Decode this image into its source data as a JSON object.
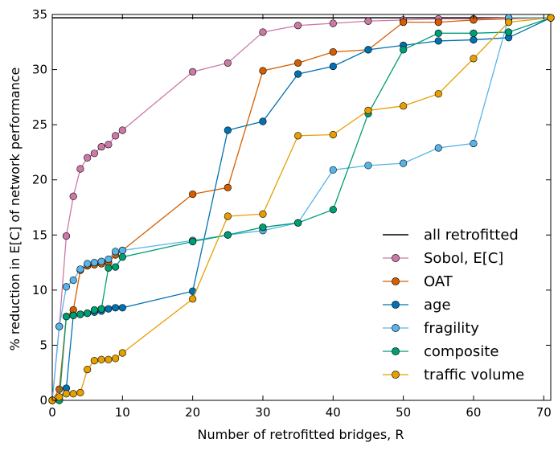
{
  "chart_data": {
    "type": "line",
    "title": "",
    "xlabel": "Number of retrofitted bridges, R",
    "ylabel": "% reduction in E[C] of network performance",
    "xlim": [
      0,
      71
    ],
    "ylim": [
      0,
      35
    ],
    "xticks": [
      0,
      10,
      20,
      30,
      40,
      50,
      60,
      70
    ],
    "yticks": [
      0,
      5,
      10,
      15,
      20,
      25,
      30,
      35
    ],
    "grid": false,
    "legend_position": "lower-right",
    "reference_line": {
      "name": "all retrofitted",
      "y": 34.7,
      "color": "#000000"
    },
    "series": [
      {
        "name": "Sobol, E[C]",
        "color": "#cc79a7",
        "x": [
          0,
          1,
          2,
          3,
          4,
          5,
          6,
          7,
          8,
          9,
          10,
          20,
          25,
          30,
          35,
          40,
          45,
          50,
          55,
          60,
          65,
          71
        ],
        "y": [
          0,
          6.7,
          14.9,
          18.5,
          21.0,
          22.0,
          22.4,
          23.0,
          23.2,
          24.0,
          24.5,
          29.8,
          30.6,
          33.4,
          34.0,
          34.2,
          34.4,
          34.5,
          34.6,
          34.6,
          34.7,
          34.7
        ]
      },
      {
        "name": "OAT",
        "color": "#d55e00",
        "x": [
          0,
          1,
          2,
          3,
          4,
          5,
          6,
          7,
          8,
          9,
          10,
          20,
          25,
          30,
          35,
          40,
          45,
          50,
          55,
          60,
          65,
          71
        ],
        "y": [
          0,
          1.0,
          7.6,
          8.2,
          11.8,
          12.2,
          12.3,
          12.4,
          12.5,
          13.2,
          13.6,
          18.7,
          19.3,
          29.9,
          30.6,
          31.6,
          31.8,
          34.3,
          34.3,
          34.5,
          34.6,
          34.7
        ]
      },
      {
        "name": "age",
        "color": "#0072b2",
        "x": [
          0,
          1,
          2,
          3,
          4,
          5,
          6,
          7,
          8,
          9,
          10,
          20,
          25,
          30,
          35,
          40,
          45,
          50,
          55,
          60,
          65,
          71
        ],
        "y": [
          0,
          0.1,
          1.1,
          7.7,
          7.8,
          7.9,
          8.0,
          8.1,
          8.3,
          8.4,
          8.4,
          9.9,
          24.5,
          25.3,
          29.6,
          30.3,
          31.8,
          32.2,
          32.6,
          32.7,
          32.9,
          34.7
        ]
      },
      {
        "name": "fragility",
        "color": "#56b4e9",
        "x": [
          0,
          1,
          2,
          3,
          4,
          5,
          6,
          7,
          8,
          9,
          10,
          20,
          25,
          30,
          35,
          40,
          45,
          50,
          55,
          60,
          65,
          71
        ],
        "y": [
          0,
          6.7,
          10.3,
          10.9,
          11.9,
          12.4,
          12.5,
          12.6,
          12.8,
          13.5,
          13.6,
          14.5,
          15.0,
          15.4,
          16.1,
          20.9,
          21.3,
          21.5,
          22.9,
          23.3,
          34.7,
          34.7
        ]
      },
      {
        "name": "composite",
        "color": "#009e73",
        "x": [
          0,
          1,
          2,
          3,
          4,
          5,
          6,
          7,
          8,
          9,
          10,
          20,
          25,
          30,
          35,
          40,
          45,
          50,
          55,
          60,
          65,
          71
        ],
        "y": [
          0,
          0.0,
          7.6,
          7.7,
          7.8,
          7.9,
          8.2,
          8.3,
          12.0,
          12.1,
          13.0,
          14.4,
          15.0,
          15.7,
          16.1,
          17.3,
          26.0,
          31.8,
          33.3,
          33.3,
          33.4,
          34.7
        ]
      },
      {
        "name": "traffic volume",
        "color": "#e69f00",
        "x": [
          0,
          1,
          2,
          3,
          4,
          5,
          6,
          7,
          8,
          9,
          10,
          20,
          25,
          30,
          35,
          40,
          45,
          50,
          55,
          60,
          65,
          71
        ],
        "y": [
          0,
          0.3,
          0.6,
          0.6,
          0.7,
          2.8,
          3.6,
          3.7,
          3.7,
          3.8,
          4.3,
          9.2,
          16.7,
          16.9,
          24.0,
          24.1,
          26.3,
          26.7,
          27.8,
          31.0,
          34.3,
          34.7
        ]
      }
    ]
  }
}
